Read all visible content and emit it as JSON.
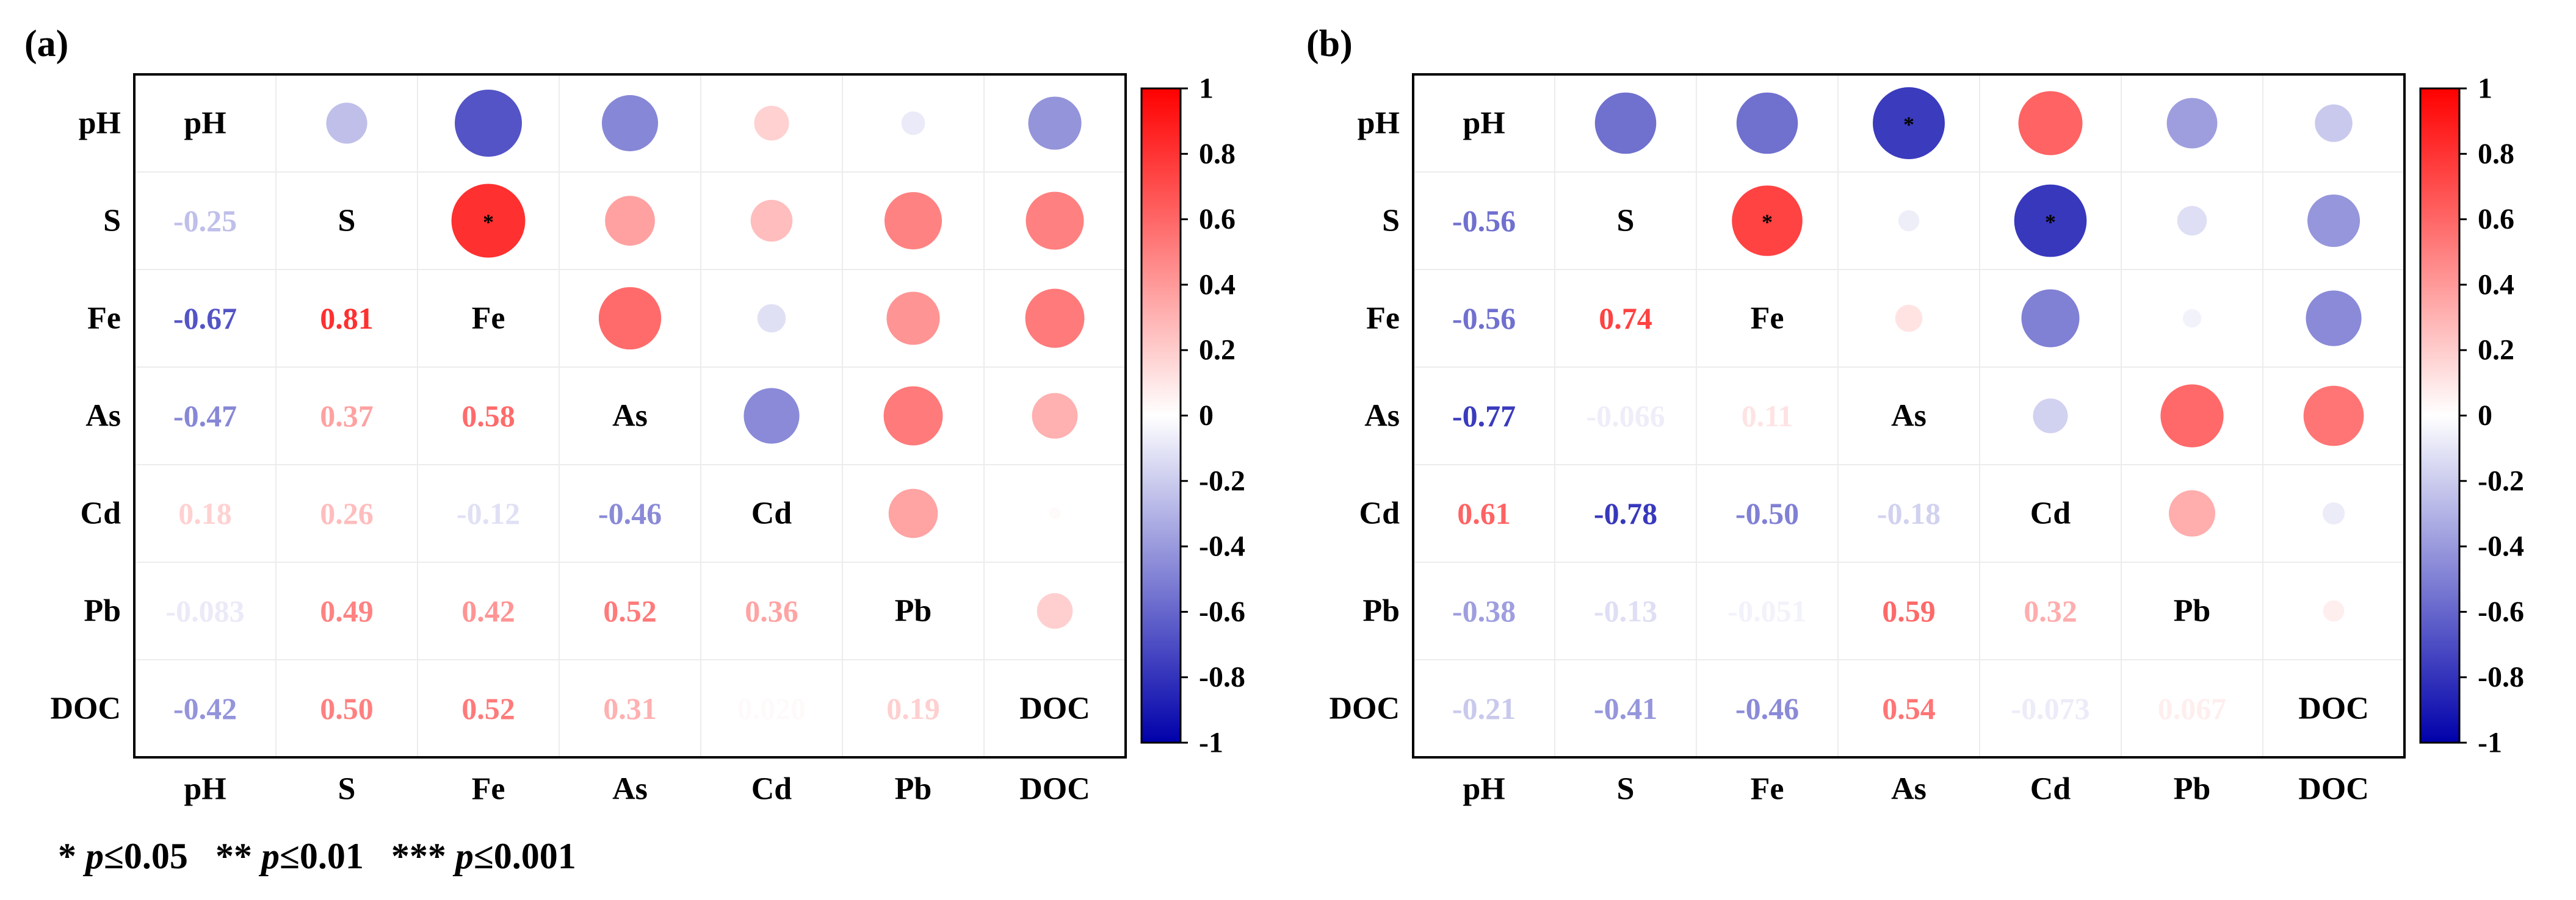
{
  "chart_data": [
    {
      "type": "heatmap",
      "panel_label": "(a)",
      "variables": [
        "pH",
        "S",
        "Fe",
        "As",
        "Cd",
        "Pb",
        "DOC"
      ],
      "lower_triangle": "numbers",
      "upper_triangle": "circles",
      "matrix": [
        [
          1,
          -0.25,
          -0.67,
          -0.47,
          0.18,
          -0.083,
          -0.42
        ],
        [
          -0.25,
          1,
          0.81,
          0.37,
          0.26,
          0.49,
          0.5
        ],
        [
          -0.67,
          0.81,
          1,
          0.58,
          -0.12,
          0.42,
          0.52
        ],
        [
          -0.47,
          0.37,
          0.58,
          1,
          -0.46,
          0.52,
          0.31
        ],
        [
          0.18,
          0.26,
          -0.12,
          -0.46,
          1,
          0.36,
          0.02
        ],
        [
          -0.083,
          0.49,
          0.42,
          0.52,
          0.36,
          1,
          0.19
        ],
        [
          -0.42,
          0.5,
          0.52,
          0.31,
          0.02,
          0.19,
          1
        ]
      ],
      "labels": [
        [
          "",
          "",
          "",
          "",
          "",
          "",
          ""
        ],
        [
          "-0.25",
          "",
          "",
          "",
          "",
          "",
          ""
        ],
        [
          "-0.67",
          "0.81",
          "",
          "",
          "",
          "",
          ""
        ],
        [
          "-0.47",
          "0.37",
          "0.58",
          "",
          "",
          "",
          ""
        ],
        [
          "0.18",
          "0.26",
          "-0.12",
          "-0.46",
          "",
          "",
          ""
        ],
        [
          "-0.083",
          "0.49",
          "0.42",
          "0.52",
          "0.36",
          "",
          ""
        ],
        [
          "-0.42",
          "0.50",
          "0.52",
          "0.31",
          "0.020",
          "0.19",
          ""
        ]
      ],
      "significance": [
        {
          "row": "S",
          "col": "Fe",
          "mark": "*"
        }
      ],
      "colorbar_ticks": [
        "1",
        "0.8",
        "0.6",
        "0.4",
        "0.2",
        "0",
        "-0.2",
        "-0.4",
        "-0.6",
        "-0.8",
        "-1"
      ],
      "colorbar_range": [
        -1,
        1
      ]
    },
    {
      "type": "heatmap",
      "panel_label": "(b)",
      "variables": [
        "pH",
        "S",
        "Fe",
        "As",
        "Cd",
        "Pb",
        "DOC"
      ],
      "lower_triangle": "numbers",
      "upper_triangle": "circles",
      "matrix": [
        [
          1,
          -0.56,
          -0.56,
          -0.77,
          0.61,
          -0.38,
          -0.21
        ],
        [
          -0.56,
          1,
          0.74,
          -0.066,
          -0.78,
          -0.13,
          -0.41
        ],
        [
          -0.56,
          0.74,
          1,
          0.11,
          -0.5,
          -0.051,
          -0.46
        ],
        [
          -0.77,
          -0.066,
          0.11,
          1,
          -0.18,
          0.59,
          0.54
        ],
        [
          0.61,
          -0.78,
          -0.5,
          -0.18,
          1,
          0.32,
          -0.073
        ],
        [
          -0.38,
          -0.13,
          -0.051,
          0.59,
          0.32,
          1,
          0.067
        ],
        [
          -0.21,
          -0.41,
          -0.46,
          0.54,
          -0.073,
          0.067,
          1
        ]
      ],
      "labels": [
        [
          "",
          "",
          "",
          "",
          "",
          "",
          ""
        ],
        [
          "-0.56",
          "",
          "",
          "",
          "",
          "",
          ""
        ],
        [
          "-0.56",
          "0.74",
          "",
          "",
          "",
          "",
          ""
        ],
        [
          "-0.77",
          "-0.066",
          "0.11",
          "",
          "",
          "",
          ""
        ],
        [
          "0.61",
          "-0.78",
          "-0.50",
          "-0.18",
          "",
          "",
          ""
        ],
        [
          "-0.38",
          "-0.13",
          "-0.051",
          "0.59",
          "0.32",
          "",
          ""
        ],
        [
          "-0.21",
          "-0.41",
          "-0.46",
          "0.54",
          "-0.073",
          "0.067",
          ""
        ]
      ],
      "significance": [
        {
          "row": "pH",
          "col": "As",
          "mark": "*"
        },
        {
          "row": "S",
          "col": "Fe",
          "mark": "*"
        },
        {
          "row": "S",
          "col": "Cd",
          "mark": "*"
        }
      ],
      "colorbar_ticks": [
        "1",
        "0.8",
        "0.6",
        "0.4",
        "0.2",
        "0",
        "-0.2",
        "-0.4",
        "-0.6",
        "-0.8",
        "-1"
      ],
      "colorbar_range": [
        -1,
        1
      ]
    }
  ],
  "footnote": {
    "star1": "*",
    "p1": "p",
    "t1": "≤0.05",
    "star2": "**",
    "p2": "p",
    "t2": "≤0.01",
    "star3": "***",
    "p3": "p",
    "t3": "≤0.001"
  },
  "colors": {
    "positive": "#ff0000",
    "negative": "#0000aa",
    "neutral": "#ffffff",
    "grid": "#ececec",
    "frame": "#000000"
  }
}
